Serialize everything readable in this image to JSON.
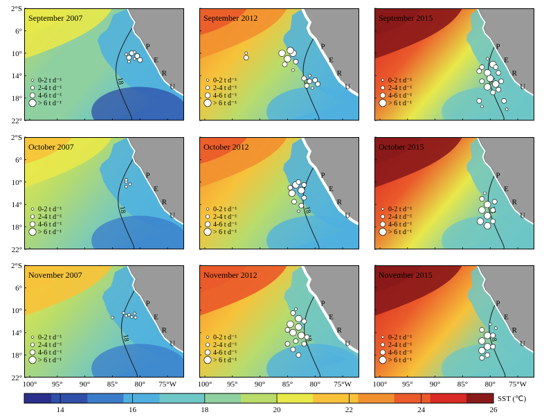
{
  "panels": [
    {
      "title": "September 2007",
      "year": 2007,
      "month": "September",
      "warm": 0.0
    },
    {
      "title": "September 2012",
      "year": 2012,
      "month": "September",
      "warm": 0.55
    },
    {
      "title": "September 2015",
      "year": 2015,
      "month": "September",
      "warm": 1.0
    },
    {
      "title": "October 2007",
      "year": 2007,
      "month": "October",
      "warm": 0.1
    },
    {
      "title": "October 2012",
      "year": 2012,
      "month": "October",
      "warm": 0.55
    },
    {
      "title": "October 2015",
      "year": 2015,
      "month": "October",
      "warm": 1.0
    },
    {
      "title": "November 2007",
      "year": 2007,
      "month": "November",
      "warm": 0.25
    },
    {
      "title": "November 2012",
      "year": 2012,
      "month": "November",
      "warm": 0.6
    },
    {
      "title": "November 2015",
      "year": 2015,
      "month": "November",
      "warm": 1.05
    }
  ],
  "country_letters": [
    "P",
    "E",
    "R",
    "U"
  ],
  "contour_label": "18",
  "legend": {
    "entries": [
      "0-2 t d⁻¹",
      "2-4 t d⁻¹",
      "4-6 t d⁻¹",
      "> 6 t d⁻¹"
    ]
  },
  "axes": {
    "lat_ticks": [
      "2°S",
      "6°",
      "10°",
      "14°",
      "18°",
      "22°"
    ],
    "lat_values": [
      2,
      6,
      10,
      14,
      18,
      22
    ],
    "lon_ticks": [
      "100°",
      "95°",
      "90°",
      "85°",
      "80°",
      "75°W"
    ],
    "lon_values": [
      100,
      95,
      90,
      85,
      80,
      75
    ],
    "lon_range": [
      101,
      72
    ],
    "lat_range": [
      2,
      22
    ]
  },
  "colorbar": {
    "label": "SST (℃)",
    "min": 13,
    "max": 26,
    "tick_labels": [
      "14",
      "16",
      "18",
      "20",
      "22",
      "24",
      "26"
    ],
    "tick_values": [
      14,
      16,
      18,
      20,
      22,
      24,
      26
    ],
    "colors": [
      "#2b2f8c",
      "#2f4fa8",
      "#3a7cc9",
      "#4fb0df",
      "#6ec6c6",
      "#8fd0a0",
      "#b9dc6a",
      "#e8e84a",
      "#f7c23a",
      "#f29030",
      "#ea5a2a",
      "#d92a25",
      "#8a1a1a"
    ]
  },
  "colors": {
    "land": "#9a9a9a",
    "coast_white": "#ffffff",
    "contour": "#1a1a1a",
    "frame": "#000000"
  },
  "catch_clusters": [
    {
      "panel": 0,
      "points": [
        [
          82.5,
          10.2,
          1
        ],
        [
          82,
          10.8,
          2
        ],
        [
          81.5,
          10,
          2
        ],
        [
          81,
          11,
          1
        ],
        [
          80.5,
          10.5,
          2
        ],
        [
          81,
          9.8,
          1
        ],
        [
          82,
          11.5,
          1
        ],
        [
          80,
          11.2,
          2
        ]
      ]
    },
    {
      "panel": 1,
      "points": [
        [
          92.5,
          10,
          1
        ],
        [
          92.5,
          10.8,
          2
        ],
        [
          86,
          10,
          3
        ],
        [
          85,
          11,
          3
        ],
        [
          84,
          10,
          3
        ],
        [
          85.5,
          12,
          2
        ],
        [
          84.5,
          9.5,
          3
        ],
        [
          83.5,
          11.5,
          2
        ],
        [
          84,
          13,
          1
        ],
        [
          82,
          14.5,
          2
        ],
        [
          81,
          15,
          2
        ],
        [
          80,
          14.8,
          2
        ],
        [
          79.5,
          15.5,
          2
        ],
        [
          81.5,
          15.8,
          2
        ],
        [
          81,
          14,
          1
        ],
        [
          80.5,
          16.2,
          1
        ]
      ]
    },
    {
      "panel": 2,
      "points": [
        [
          80.5,
          11,
          1
        ],
        [
          81.5,
          12.5,
          2
        ],
        [
          80.5,
          13.5,
          3
        ],
        [
          79.5,
          12,
          3
        ],
        [
          80,
          14.5,
          3
        ],
        [
          79,
          15.5,
          3
        ],
        [
          80.5,
          16,
          3
        ],
        [
          78.5,
          13.5,
          2
        ],
        [
          79.5,
          17,
          2
        ],
        [
          81.5,
          15,
          2
        ],
        [
          78.5,
          16.5,
          2
        ],
        [
          79,
          12.5,
          2
        ],
        [
          82,
          13.2,
          2
        ],
        [
          82,
          18.5,
          2
        ],
        [
          81.5,
          19.5,
          1
        ],
        [
          77.5,
          18.5,
          2
        ],
        [
          77,
          20,
          1
        ],
        [
          78,
          15,
          2
        ]
      ]
    },
    {
      "panel": 3,
      "points": [
        [
          82.5,
          10,
          1
        ],
        [
          82.5,
          10.8,
          1
        ],
        [
          81.8,
          10.4,
          1
        ],
        [
          82.5,
          9.6,
          1
        ]
      ]
    },
    {
      "panel": 4,
      "points": [
        [
          83.5,
          10.5,
          3
        ],
        [
          82.5,
          11.5,
          3
        ],
        [
          84.2,
          12,
          3
        ],
        [
          82,
          12.8,
          2
        ],
        [
          83.8,
          13.5,
          2
        ],
        [
          82.5,
          14.2,
          2
        ],
        [
          83,
          10,
          2
        ],
        [
          84.5,
          11,
          2
        ],
        [
          82,
          10.5,
          2
        ],
        [
          83,
          15.2,
          1
        ]
      ]
    },
    {
      "panel": 5,
      "points": [
        [
          81.5,
          13,
          2
        ],
        [
          80.5,
          14,
          3
        ],
        [
          81.5,
          15,
          3
        ],
        [
          80.5,
          16,
          3
        ],
        [
          81.8,
          17,
          3
        ],
        [
          80.5,
          17.8,
          3
        ],
        [
          79.5,
          15,
          2
        ],
        [
          79.5,
          17,
          2
        ],
        [
          81,
          12,
          1
        ],
        [
          79.2,
          13.5,
          2
        ]
      ]
    },
    {
      "panel": 6,
      "points": [
        [
          83,
          10.5,
          1
        ],
        [
          82,
          10.8,
          1
        ],
        [
          81.5,
          11.2,
          1
        ],
        [
          81,
          10.6,
          1
        ],
        [
          82.5,
          11,
          1
        ],
        [
          80.8,
          11.3,
          1
        ],
        [
          85,
          11.3,
          1
        ]
      ]
    },
    {
      "panel": 7,
      "points": [
        [
          84,
          10.5,
          2
        ],
        [
          83,
          11.5,
          3
        ],
        [
          84.5,
          12.5,
          3
        ],
        [
          83,
          13,
          3
        ],
        [
          84,
          14,
          3
        ],
        [
          82.5,
          14.5,
          3
        ],
        [
          83.5,
          15.5,
          2
        ],
        [
          82,
          16,
          2
        ],
        [
          84,
          17,
          2
        ],
        [
          83,
          18,
          2
        ],
        [
          82,
          12,
          2
        ],
        [
          85,
          13.5,
          2
        ],
        [
          81.5,
          14.8,
          2
        ],
        [
          85,
          16,
          2
        ],
        [
          83.5,
          9.8,
          1
        ]
      ]
    },
    {
      "panel": 8,
      "points": [
        [
          81.5,
          13.5,
          2
        ],
        [
          80.5,
          14.5,
          3
        ],
        [
          81.5,
          15.5,
          3
        ],
        [
          80.5,
          16.5,
          3
        ],
        [
          81.5,
          17.2,
          3
        ],
        [
          80.5,
          18,
          2
        ],
        [
          79.5,
          14.5,
          2
        ],
        [
          79.5,
          16.5,
          2
        ],
        [
          79,
          13.2,
          1
        ],
        [
          80,
          12.5,
          1
        ],
        [
          81.5,
          18.5,
          2
        ]
      ]
    }
  ]
}
